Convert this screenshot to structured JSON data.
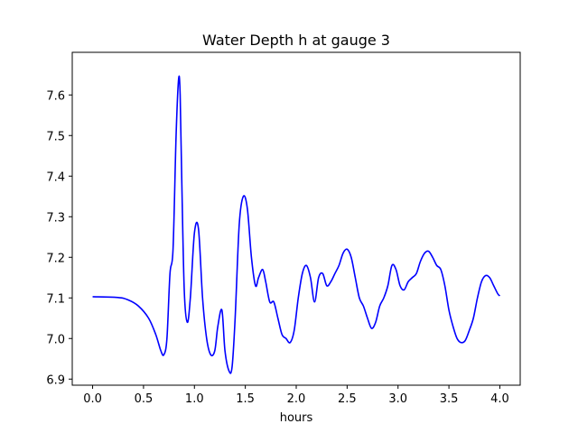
{
  "chart_data": {
    "type": "line",
    "title": "Water Depth h at gauge 3",
    "xlabel": "hours",
    "ylabel": "",
    "xlim": [
      -0.2,
      4.2
    ],
    "ylim": [
      6.885,
      7.705
    ],
    "xticks": [
      0.0,
      0.5,
      1.0,
      1.5,
      2.0,
      2.5,
      3.0,
      3.5,
      4.0
    ],
    "xtick_labels": [
      "0.0",
      "0.5",
      "1.0",
      "1.5",
      "2.0",
      "2.5",
      "3.0",
      "3.5",
      "4.0"
    ],
    "yticks": [
      6.9,
      7.0,
      7.1,
      7.2,
      7.3,
      7.4,
      7.5,
      7.6
    ],
    "ytick_labels": [
      "6.9",
      "7.0",
      "7.1",
      "7.2",
      "7.3",
      "7.4",
      "7.5",
      "7.6"
    ],
    "grid": false,
    "series": [
      {
        "color": "#0000ff",
        "x": [
          0.0,
          0.25,
          0.35,
          0.45,
          0.55,
          0.62,
          0.67,
          0.7,
          0.73,
          0.76,
          0.79,
          0.82,
          0.845,
          0.86,
          0.875,
          0.9,
          0.93,
          0.96,
          1.0,
          1.04,
          1.08,
          1.12,
          1.16,
          1.2,
          1.23,
          1.27,
          1.3,
          1.34,
          1.37,
          1.4,
          1.44,
          1.48,
          1.52,
          1.56,
          1.6,
          1.63,
          1.67,
          1.7,
          1.74,
          1.78,
          1.82,
          1.86,
          1.9,
          1.94,
          1.98,
          2.02,
          2.06,
          2.1,
          2.14,
          2.18,
          2.22,
          2.26,
          2.3,
          2.34,
          2.38,
          2.42,
          2.46,
          2.5,
          2.54,
          2.58,
          2.62,
          2.66,
          2.7,
          2.74,
          2.78,
          2.82,
          2.86,
          2.9,
          2.94,
          2.98,
          3.02,
          3.06,
          3.1,
          3.14,
          3.18,
          3.22,
          3.26,
          3.3,
          3.34,
          3.38,
          3.42,
          3.46,
          3.5,
          3.54,
          3.58,
          3.62,
          3.66,
          3.7,
          3.74,
          3.78,
          3.82,
          3.86,
          3.9,
          3.94,
          3.98,
          4.0
        ],
        "y": [
          7.103,
          7.101,
          7.095,
          7.08,
          7.05,
          7.01,
          6.97,
          6.96,
          7.0,
          7.16,
          7.22,
          7.5,
          7.64,
          7.6,
          7.4,
          7.12,
          7.04,
          7.1,
          7.26,
          7.27,
          7.1,
          7.0,
          6.96,
          6.97,
          7.03,
          7.07,
          6.97,
          6.92,
          6.93,
          7.05,
          7.28,
          7.35,
          7.32,
          7.2,
          7.13,
          7.15,
          7.17,
          7.14,
          7.09,
          7.09,
          7.05,
          7.01,
          7.0,
          6.99,
          7.02,
          7.1,
          7.16,
          7.18,
          7.15,
          7.09,
          7.15,
          7.16,
          7.13,
          7.14,
          7.16,
          7.18,
          7.21,
          7.22,
          7.2,
          7.15,
          7.1,
          7.08,
          7.05,
          7.025,
          7.04,
          7.08,
          7.1,
          7.13,
          7.18,
          7.17,
          7.13,
          7.12,
          7.14,
          7.15,
          7.16,
          7.19,
          7.21,
          7.215,
          7.2,
          7.18,
          7.17,
          7.13,
          7.07,
          7.03,
          7.0,
          6.99,
          6.995,
          7.02,
          7.05,
          7.1,
          7.14,
          7.155,
          7.15,
          7.13,
          7.11,
          7.105
        ]
      }
    ]
  }
}
